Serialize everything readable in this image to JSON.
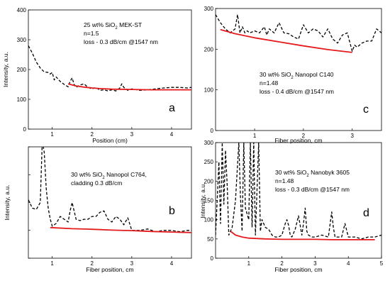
{
  "chart_data": [
    {
      "type": "line",
      "id": "a",
      "panel_letter": "a",
      "annotation": [
        "25 wt% SiO₂ MEK-ST",
        "n=1.5",
        "loss - 0.3 dB/cm @1547 nm"
      ],
      "xlabel": "Position (cm)",
      "ylabel": "Intensity, a.u.",
      "xlim": [
        0.4,
        4.5
      ],
      "ylim": [
        0,
        400
      ],
      "xticks": [
        1,
        2,
        3,
        4
      ],
      "yticks": [
        0,
        100,
        200,
        300,
        400
      ],
      "show_yticklabels": true,
      "series": [
        {
          "style": "measured",
          "color": "#000000",
          "x": [
            0.4,
            0.5,
            0.6,
            0.7,
            0.8,
            0.9,
            0.95,
            1.0,
            1.05,
            1.1,
            1.2,
            1.3,
            1.4,
            1.45,
            1.5,
            1.55,
            1.6,
            1.7,
            1.8,
            1.9,
            2.0,
            2.1,
            2.2,
            2.3,
            2.4,
            2.5,
            2.6,
            2.7,
            2.75,
            2.8,
            2.9,
            3.0,
            3.2,
            3.4,
            3.6,
            3.8,
            4.0,
            4.2,
            4.4,
            4.5
          ],
          "y": [
            280,
            255,
            225,
            205,
            192,
            190,
            185,
            190,
            165,
            175,
            160,
            150,
            142,
            160,
            172,
            150,
            140,
            148,
            152,
            140,
            135,
            140,
            130,
            132,
            128,
            132,
            128,
            138,
            152,
            140,
            130,
            135,
            130,
            132,
            135,
            138,
            140,
            140,
            138,
            140
          ]
        },
        {
          "style": "fit",
          "color": "#e41a1c",
          "x": [
            1.4,
            1.6,
            1.8,
            2.0,
            2.2,
            2.5,
            3.0,
            3.5,
            4.0,
            4.5
          ],
          "y": [
            152,
            145,
            141,
            138,
            136,
            134,
            133,
            132,
            132,
            132
          ]
        }
      ]
    },
    {
      "type": "line",
      "id": "c",
      "panel_letter": "c",
      "annotation": [
        "30 wt% SiO₂ Nanopol C140",
        "n=1.48",
        "loss - 0.4 dB/cm @1547 nm"
      ],
      "xlabel": "Fiber position, cm",
      "ylabel": "",
      "xlim": [
        0.2,
        3.6
      ],
      "ylim": [
        0,
        300
      ],
      "xticks": [
        1,
        2,
        3
      ],
      "yticks": [
        0,
        100,
        200,
        300
      ],
      "show_yticklabels": true,
      "series": [
        {
          "style": "measured",
          "color": "#000000",
          "x": [
            0.2,
            0.3,
            0.4,
            0.5,
            0.6,
            0.65,
            0.7,
            0.75,
            0.8,
            0.85,
            0.9,
            1.0,
            1.1,
            1.2,
            1.25,
            1.3,
            1.35,
            1.4,
            1.5,
            1.6,
            1.7,
            1.8,
            1.9,
            2.0,
            2.1,
            2.2,
            2.3,
            2.4,
            2.5,
            2.6,
            2.7,
            2.8,
            2.9,
            3.0,
            3.05,
            3.1,
            3.2,
            3.3,
            3.4,
            3.5,
            3.6
          ],
          "y": [
            285,
            265,
            250,
            240,
            250,
            285,
            240,
            255,
            240,
            245,
            240,
            245,
            240,
            255,
            235,
            250,
            245,
            240,
            265,
            240,
            238,
            230,
            225,
            260,
            240,
            250,
            245,
            230,
            250,
            225,
            215,
            235,
            240,
            195,
            210,
            205,
            215,
            220,
            220,
            250,
            240
          ]
        },
        {
          "style": "fit",
          "color": "#e41a1c",
          "x": [
            0.3,
            0.6,
            1.0,
            1.5,
            2.0,
            2.5,
            3.0
          ],
          "y": [
            248,
            238,
            228,
            218,
            208,
            199,
            192
          ]
        }
      ]
    },
    {
      "type": "line",
      "id": "b",
      "panel_letter": "b",
      "annotation": [
        "30 wt% SiO₂ Nanopol C764,",
        "cladding 0.3 dB/cm"
      ],
      "xlabel": "Fiber position, cm",
      "ylabel": "Intensity, a.u.",
      "xlim": [
        0.4,
        4.5
      ],
      "ylim": [
        0,
        400
      ],
      "xticks": [
        1,
        2,
        3,
        4
      ],
      "yticks": [
        0,
        100,
        200,
        300,
        400
      ],
      "show_yticklabels": false,
      "series": [
        {
          "style": "measured",
          "color": "#000000",
          "x": [
            0.4,
            0.5,
            0.6,
            0.7,
            0.75,
            0.8,
            0.85,
            0.9,
            0.95,
            1.0,
            1.1,
            1.2,
            1.3,
            1.4,
            1.45,
            1.5,
            1.6,
            1.7,
            1.8,
            1.9,
            2.0,
            2.1,
            2.2,
            2.3,
            2.4,
            2.5,
            2.6,
            2.7,
            2.8,
            2.9,
            3.0,
            3.2,
            3.4,
            3.6,
            3.8,
            4.0,
            4.2,
            4.4,
            4.5
          ],
          "y": [
            210,
            180,
            175,
            200,
            420,
            380,
            250,
            180,
            140,
            115,
            125,
            150,
            140,
            130,
            170,
            200,
            140,
            135,
            140,
            140,
            150,
            150,
            165,
            170,
            140,
            130,
            150,
            140,
            120,
            145,
            100,
            100,
            105,
            95,
            100,
            100,
            95,
            100,
            100
          ]
        },
        {
          "style": "fit",
          "color": "#e41a1c",
          "x": [
            0.95,
            1.5,
            2.0,
            2.5,
            3.0,
            3.5,
            4.0,
            4.5
          ],
          "y": [
            110,
            106,
            104,
            101,
            99,
            96,
            94,
            92
          ]
        }
      ]
    },
    {
      "type": "line",
      "id": "d",
      "panel_letter": "d",
      "annotation": [
        "30 wt% SiO₂ Nanobyk 3605",
        "n=1.48",
        "loss - 0.3 dB/cm @1547 nm"
      ],
      "xlabel": "Fiber position, cm",
      "ylabel": "Intensity, a.u.",
      "xlim": [
        0,
        5
      ],
      "ylim": [
        0,
        300
      ],
      "xticks": [
        1,
        2,
        3,
        4,
        5
      ],
      "yticks": [
        0,
        50,
        100,
        150,
        200,
        250,
        300
      ],
      "show_yticklabels": true,
      "series": [
        {
          "style": "measured",
          "color": "#000000",
          "x": [
            0.0,
            0.05,
            0.1,
            0.15,
            0.2,
            0.25,
            0.3,
            0.35,
            0.4,
            0.5,
            0.6,
            0.7,
            0.75,
            0.8,
            0.85,
            0.9,
            1.0,
            1.05,
            1.1,
            1.15,
            1.2,
            1.25,
            1.3,
            1.35,
            1.4,
            1.5,
            1.6,
            1.7,
            1.8,
            1.9,
            2.0,
            2.1,
            2.15,
            2.2,
            2.25,
            2.3,
            2.4,
            2.5,
            2.6,
            2.65,
            2.7,
            2.75,
            2.8,
            2.9,
            3.0,
            3.2,
            3.4,
            3.5,
            3.55,
            3.6,
            3.8,
            3.9,
            4.0,
            4.2,
            4.4,
            4.6,
            4.8,
            5.0
          ],
          "y": [
            60,
            150,
            250,
            90,
            300,
            140,
            280,
            190,
            60,
            80,
            150,
            300,
            160,
            70,
            300,
            130,
            100,
            300,
            80,
            300,
            60,
            180,
            300,
            70,
            100,
            80,
            75,
            60,
            55,
            55,
            60,
            90,
            100,
            85,
            60,
            55,
            75,
            110,
            60,
            90,
            130,
            70,
            60,
            55,
            55,
            60,
            55,
            120,
            80,
            55,
            55,
            90,
            55,
            55,
            50,
            55,
            55,
            60
          ]
        },
        {
          "style": "fit",
          "color": "#e41a1c",
          "x": [
            0.45,
            0.6,
            0.8,
            1.0,
            1.5,
            2.0,
            2.5,
            3.0,
            3.5,
            4.0,
            4.5,
            4.8
          ],
          "y": [
            70,
            60,
            55,
            52,
            50,
            49,
            49,
            49,
            48,
            48,
            48,
            48
          ]
        }
      ]
    }
  ]
}
